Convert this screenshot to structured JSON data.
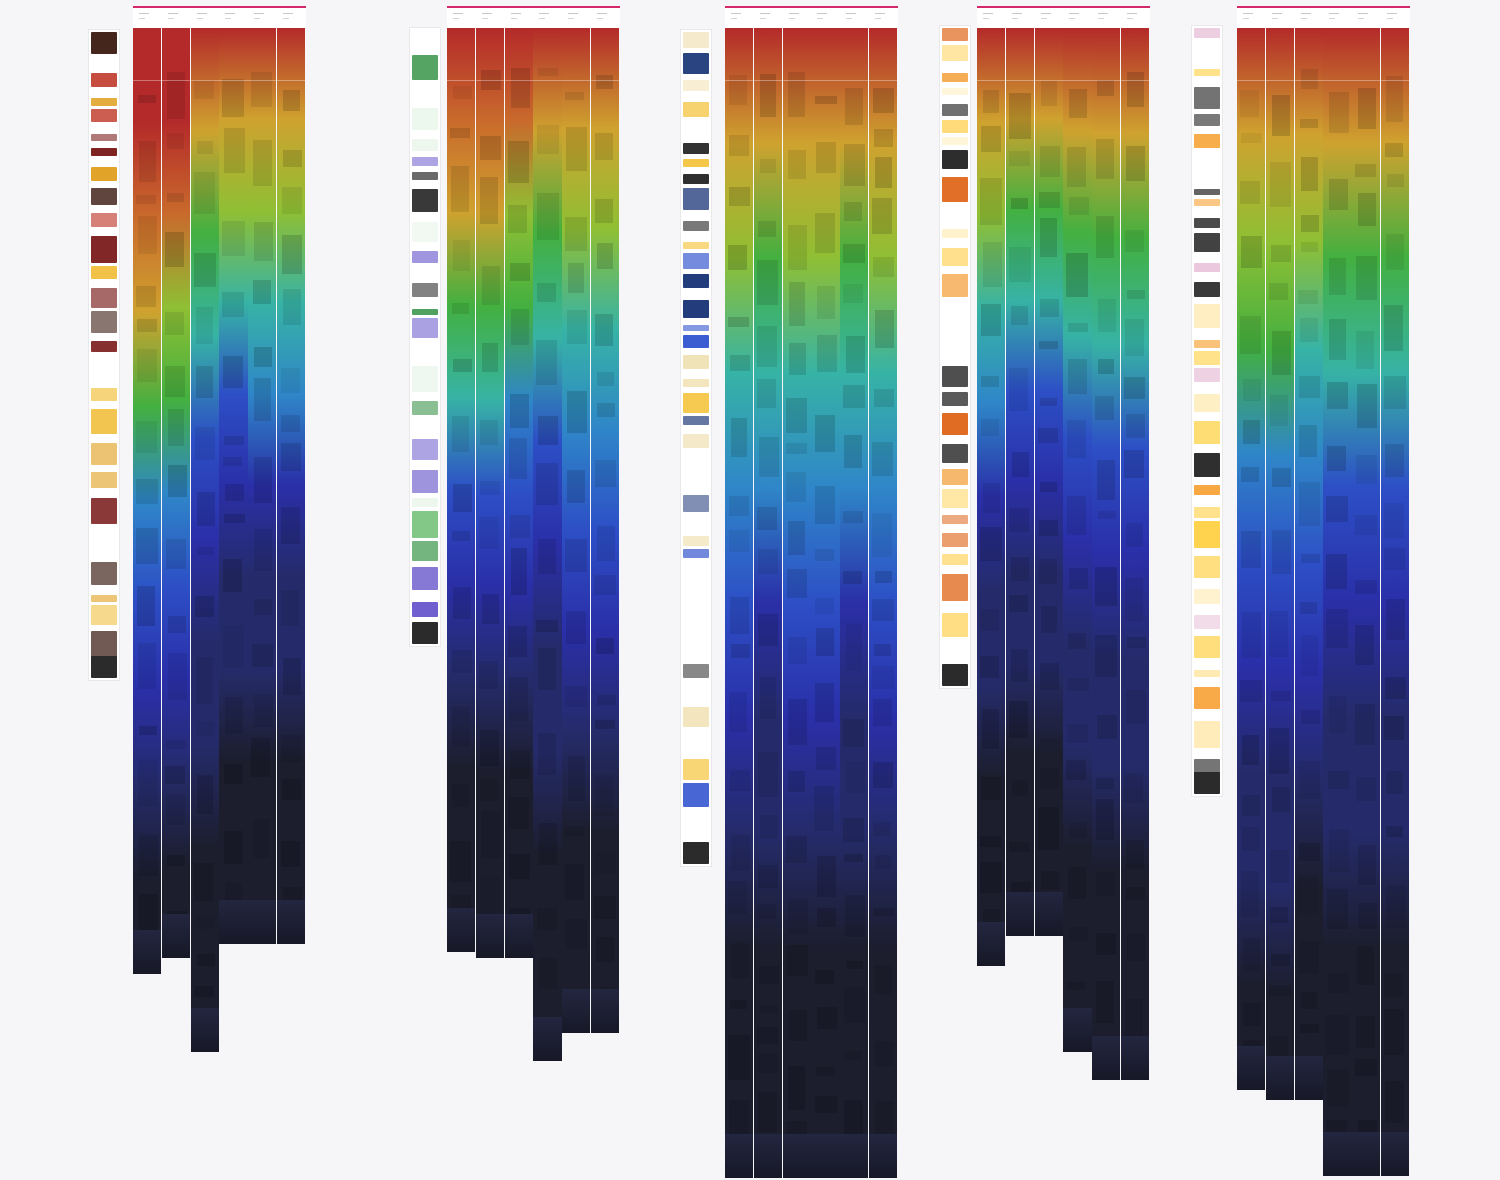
{
  "board": {
    "background": "#f6f6f8",
    "header_accent": "#d4286a",
    "heat_colors": [
      "#b42a2a",
      "#c96a2c",
      "#cfa22f",
      "#8fbf34",
      "#43b040",
      "#37b3a5",
      "#2f86c8",
      "#2d4fc6",
      "#2a2fa8",
      "#252b6a",
      "#1c1e2e"
    ],
    "icon": "heatmap-scroll-depth-icon",
    "groups": [
      {
        "name": "group-1",
        "thumb_palette": [
          "#7a1a1a",
          "#c0392b",
          "#f0c040",
          "#3a1a10",
          "#e0a020",
          "#ffffff"
        ],
        "strips": [
          {
            "reach": [
              100,
              100,
              92,
              78,
              60,
              42,
              28,
              16,
              8,
              3,
              0
            ]
          },
          {
            "reach": [
              100,
              98,
              90,
              75,
              58,
              42,
              30,
              18,
              10,
              4,
              0
            ]
          },
          {
            "reach": [
              100,
              80,
              64,
              46,
              30,
              18,
              10,
              6,
              3,
              1,
              0
            ]
          },
          {
            "reach": [
              100,
              82,
              66,
              50,
              34,
              22,
              14,
              8,
              4,
              1,
              0
            ]
          },
          {
            "reach": [
              100,
              84,
              70,
              55,
              38,
              24,
              14,
              8,
              4,
              2,
              0
            ]
          },
          {
            "reach": [
              100,
              84,
              70,
              55,
              38,
              24,
              14,
              8,
              4,
              2,
              0
            ]
          }
        ]
      },
      {
        "name": "group-2",
        "thumb_palette": [
          "#2f8f3f",
          "#4caf50",
          "#e8f5e9",
          "#ffffff",
          "#333333",
          "#6a5acd"
        ],
        "strips": [
          {
            "reach": [
              100,
              90,
              76,
              62,
              46,
              30,
              18,
              10,
              5,
              2,
              0
            ]
          },
          {
            "reach": [
              100,
              90,
              76,
              62,
              46,
              30,
              18,
              10,
              5,
              2,
              0
            ]
          },
          {
            "reach": [
              100,
              88,
              72,
              58,
              42,
              28,
              16,
              9,
              5,
              2,
              0
            ]
          },
          {
            "reach": [
              100,
              80,
              62,
              46,
              30,
              18,
              10,
              6,
              3,
              1,
              0
            ]
          },
          {
            "reach": [
              100,
              84,
              70,
              55,
              40,
              26,
              16,
              9,
              5,
              2,
              0
            ]
          },
          {
            "reach": [
              100,
              84,
              70,
              55,
              40,
              26,
              16,
              9,
              5,
              2,
              0
            ]
          }
        ]
      },
      {
        "name": "group-3",
        "thumb_palette": [
          "#1f3a7a",
          "#f5c542",
          "#ffffff",
          "#2b2b2b",
          "#f0e0b0",
          "#3a5ad0"
        ],
        "strips": [
          {
            "reach": [
              100,
              84,
              68,
              54,
              40,
              28,
              18,
              10,
              5,
              2,
              0
            ]
          },
          {
            "reach": [
              100,
              80,
              64,
              50,
              36,
              24,
              15,
              8,
              4,
              1,
              0
            ]
          },
          {
            "reach": [
              100,
              82,
              66,
              52,
              38,
              26,
              16,
              9,
              5,
              2,
              0
            ]
          },
          {
            "reach": [
              100,
              84,
              68,
              54,
              40,
              28,
              18,
              10,
              5,
              2,
              0
            ]
          },
          {
            "reach": [
              100,
              80,
              64,
              50,
              36,
              24,
              15,
              8,
              4,
              1,
              0
            ]
          },
          {
            "reach": [
              100,
              82,
              66,
              52,
              38,
              26,
              16,
              9,
              5,
              2,
              0
            ]
          }
        ]
      },
      {
        "name": "group-4",
        "thumb_palette": [
          "#f39c34",
          "#ffd870",
          "#ffffff",
          "#2b2b2b",
          "#e06a20",
          "#fff2cc"
        ],
        "strips": [
          {
            "reach": [
              100,
              82,
              66,
              50,
              36,
              24,
              14,
              8,
              4,
              1,
              0
            ]
          },
          {
            "reach": [
              100,
              80,
              64,
              48,
              34,
              22,
              13,
              7,
              3,
              1,
              0
            ]
          },
          {
            "reach": [
              100,
              80,
              64,
              48,
              34,
              22,
              13,
              7,
              3,
              1,
              0
            ]
          },
          {
            "reach": [
              100,
              78,
              62,
              46,
              32,
              20,
              12,
              7,
              3,
              1,
              0
            ]
          },
          {
            "reach": [
              100,
              80,
              64,
              48,
              34,
              22,
              13,
              7,
              3,
              1,
              0
            ]
          },
          {
            "reach": [
              100,
              80,
              64,
              48,
              34,
              22,
              13,
              7,
              3,
              1,
              0
            ]
          }
        ]
      },
      {
        "name": "group-5",
        "thumb_palette": [
          "#f7a43a",
          "#ffd24a",
          "#ffffff",
          "#2b2b2b",
          "#ffe9b0",
          "#e8c0d8"
        ],
        "strips": [
          {
            "reach": [
              100,
              84,
              70,
              56,
              42,
              30,
              20,
              12,
              6,
              2,
              0
            ]
          },
          {
            "reach": [
              100,
              84,
              70,
              56,
              42,
              30,
              20,
              12,
              6,
              2,
              0
            ]
          },
          {
            "reach": [
              100,
              82,
              68,
              54,
              40,
              28,
              18,
              10,
              5,
              2,
              0
            ]
          },
          {
            "reach": [
              100,
              80,
              64,
              48,
              34,
              22,
              13,
              7,
              3,
              1,
              0
            ]
          },
          {
            "reach": [
              100,
              80,
              64,
              48,
              34,
              22,
              13,
              7,
              3,
              1,
              0
            ]
          },
          {
            "reach": [
              100,
              80,
              64,
              48,
              34,
              22,
              13,
              7,
              3,
              1,
              0
            ]
          }
        ]
      }
    ]
  }
}
